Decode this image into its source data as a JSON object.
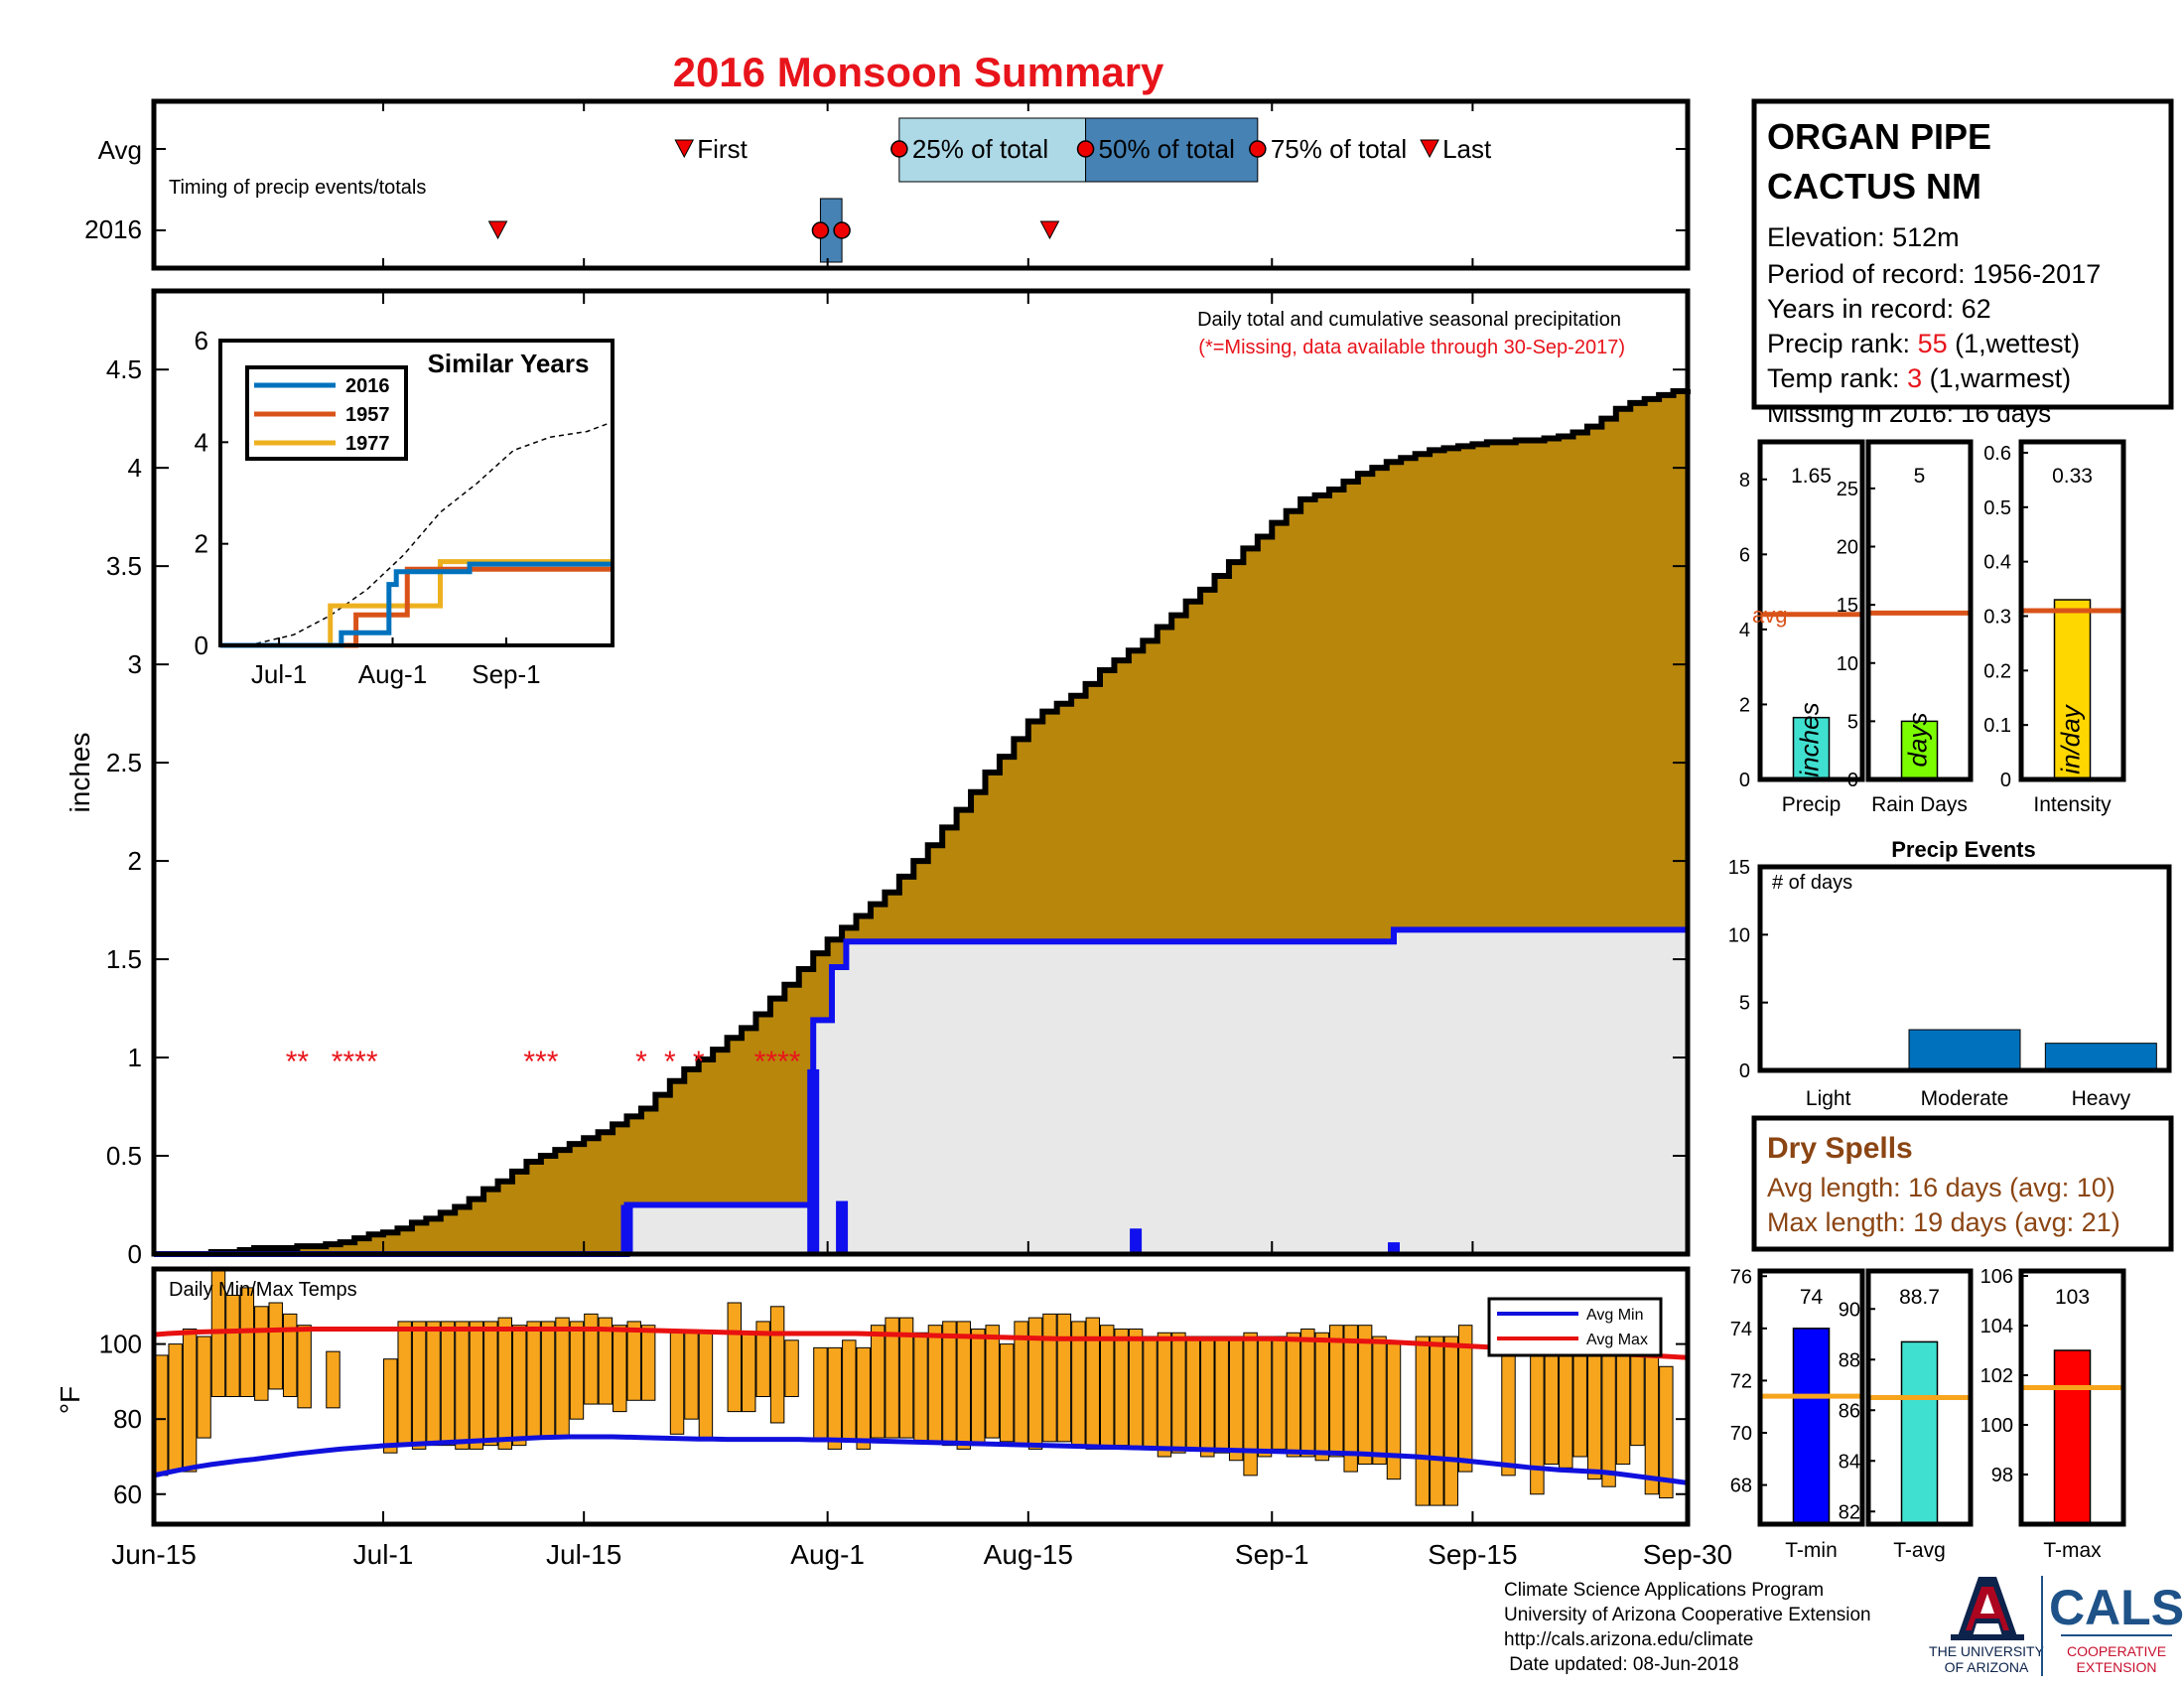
{
  "title": "2016 Monsoon Summary",
  "colors": {
    "title": "#e8141b",
    "cumulative_fill": "#b8860b",
    "avg_fill": "#e8e8e8",
    "avg_line": "#1010ee",
    "temp_bar": "#f7a51d",
    "avg_max_line": "#e81010",
    "avg_min_line": "#1010dd",
    "avg_ref": "#d95319",
    "timing_light": "#add8e6",
    "timing_dark": "#4682b4",
    "missing": "#e8141b",
    "dry_text": "#8b4513",
    "ua_blue": "#0c234b",
    "ua_red": "#ab0520",
    "cals_blue": "#1e5288",
    "cals_red": "#c8102e"
  },
  "timing": {
    "row_labels": [
      "Avg",
      "2016"
    ],
    "caption": "Timing of precip events/totals",
    "avg_marks": [
      {
        "label": "First",
        "kind": "triangle",
        "day": 37
      },
      {
        "label": "25% of total",
        "kind": "circle",
        "day": 52
      },
      {
        "label": "50% of total",
        "kind": "circle",
        "day": 65
      },
      {
        "label": "75% of total",
        "kind": "circle",
        "day": 77
      },
      {
        "label": "Last",
        "kind": "triangle",
        "day": 89
      }
    ],
    "marks_2016": [
      {
        "kind": "triangle",
        "day": 24
      },
      {
        "kind": "circle",
        "day": 46.5
      },
      {
        "kind": "circle",
        "day": 48
      },
      {
        "kind": "triangle",
        "day": 62.5
      }
    ],
    "box_2016": {
      "start": 46.5,
      "end": 48
    }
  },
  "main_chart": {
    "ylabel": "inches",
    "yticks": [
      0,
      0.5,
      1,
      1.5,
      2,
      2.5,
      3,
      3.5,
      4,
      4.5
    ],
    "ylim": [
      0,
      4.9
    ],
    "xlim": [
      0,
      107
    ],
    "xticks": [
      {
        "label": "Jun-15",
        "day": 0
      },
      {
        "label": "Jul-1",
        "day": 16
      },
      {
        "label": "Jul-15",
        "day": 30
      },
      {
        "label": "Aug-1",
        "day": 47
      },
      {
        "label": "Aug-15",
        "day": 61
      },
      {
        "label": "Sep-1",
        "day": 78
      },
      {
        "label": "Sep-15",
        "day": 92
      },
      {
        "label": "Sep-30",
        "day": 107
      }
    ],
    "annotation": "Daily total and cumulative seasonal precipitation",
    "annotation_note": "(*=Missing, data available through 30-Sep-2017)",
    "missing_stars": [
      {
        "day": 10,
        "text": "**"
      },
      {
        "day": 14,
        "text": "****"
      },
      {
        "day": 27,
        "text": "***"
      },
      {
        "day": 34,
        "text": "*"
      },
      {
        "day": 36,
        "text": "*"
      },
      {
        "day": 38,
        "text": "*"
      },
      {
        "day": 43.5,
        "text": "****"
      }
    ]
  },
  "chart_data": [
    {
      "type": "area",
      "name": "cumulative average precipitation",
      "x": [
        0,
        1,
        2,
        3,
        4,
        5,
        6,
        7,
        8,
        9,
        10,
        11,
        12,
        13,
        14,
        15,
        16,
        17,
        18,
        19,
        20,
        21,
        22,
        23,
        24,
        25,
        26,
        27,
        28,
        29,
        30,
        31,
        32,
        33,
        34,
        35,
        36,
        37,
        38,
        39,
        40,
        41,
        42,
        43,
        44,
        45,
        46,
        47,
        48,
        49,
        50,
        51,
        52,
        53,
        54,
        55,
        56,
        57,
        58,
        59,
        60,
        61,
        62,
        63,
        64,
        65,
        66,
        67,
        68,
        69,
        70,
        71,
        72,
        73,
        74,
        75,
        76,
        77,
        78,
        79,
        80,
        81,
        82,
        83,
        84,
        85,
        86,
        87,
        88,
        89,
        90,
        91,
        92,
        93,
        94,
        95,
        96,
        97,
        98,
        99,
        100,
        101,
        102,
        103,
        104,
        105,
        106,
        107
      ],
      "values": [
        0,
        0,
        0,
        0,
        0.01,
        0.01,
        0.02,
        0.03,
        0.03,
        0.03,
        0.04,
        0.04,
        0.05,
        0.06,
        0.08,
        0.1,
        0.11,
        0.13,
        0.16,
        0.18,
        0.21,
        0.24,
        0.28,
        0.33,
        0.37,
        0.42,
        0.47,
        0.5,
        0.53,
        0.56,
        0.59,
        0.62,
        0.66,
        0.7,
        0.74,
        0.81,
        0.88,
        0.94,
        0.99,
        1.04,
        1.1,
        1.15,
        1.22,
        1.3,
        1.37,
        1.45,
        1.53,
        1.6,
        1.66,
        1.72,
        1.78,
        1.84,
        1.92,
        2.0,
        2.08,
        2.17,
        2.26,
        2.35,
        2.45,
        2.53,
        2.62,
        2.71,
        2.76,
        2.8,
        2.84,
        2.9,
        2.97,
        3.02,
        3.07,
        3.12,
        3.19,
        3.25,
        3.32,
        3.38,
        3.45,
        3.52,
        3.59,
        3.65,
        3.72,
        3.78,
        3.84,
        3.86,
        3.89,
        3.93,
        3.97,
        4.0,
        4.03,
        4.05,
        4.07,
        4.09,
        4.1,
        4.11,
        4.12,
        4.13,
        4.13,
        4.14,
        4.14,
        4.15,
        4.16,
        4.18,
        4.21,
        4.25,
        4.3,
        4.33,
        4.35,
        4.37,
        4.39,
        4.4
      ],
      "xlabel": "",
      "ylabel": "inches",
      "ylim": [
        0,
        4.9
      ]
    },
    {
      "type": "line",
      "name": "cumulative 2016 precipitation",
      "x": [
        0,
        33,
        33,
        46,
        46,
        47.3,
        47.3,
        48.3,
        48.3,
        68.5,
        68.5,
        86.5,
        86.5,
        107
      ],
      "values": [
        0,
        0,
        0.25,
        0.25,
        1.19,
        1.19,
        1.46,
        1.46,
        1.59,
        1.59,
        1.59,
        1.59,
        1.65,
        1.65
      ]
    },
    {
      "type": "bar",
      "name": "daily 2016 precipitation",
      "x": [
        33,
        46,
        48,
        68.5,
        86.5
      ],
      "values": [
        0.25,
        0.94,
        0.27,
        0.13,
        0.06
      ]
    },
    {
      "type": "line",
      "name": "similar years inset",
      "title": "Similar Years",
      "xticks": [
        "Jul-1",
        "Aug-1",
        "Sep-1"
      ],
      "yticks": [
        0,
        2,
        4,
        6
      ],
      "ylim": [
        0,
        6
      ],
      "xlim": [
        0,
        107
      ],
      "series": [
        {
          "name": "2016",
          "color": "#0072bd",
          "x": [
            0,
            33,
            33,
            46,
            46,
            48,
            48,
            68,
            68,
            107
          ],
          "values": [
            0,
            0,
            0.25,
            0.25,
            1.2,
            1.2,
            1.45,
            1.45,
            1.6,
            1.6
          ]
        },
        {
          "name": "1957",
          "color": "#d95319",
          "x": [
            0,
            37,
            37,
            51,
            51,
            107
          ],
          "values": [
            0,
            0,
            0.6,
            0.6,
            1.5,
            1.5
          ]
        },
        {
          "name": "1977",
          "color": "#edb120",
          "x": [
            0,
            30,
            30,
            60,
            60,
            107
          ],
          "values": [
            0,
            0,
            0.78,
            0.78,
            1.65,
            1.65
          ]
        },
        {
          "name": "avg",
          "color": "#000000",
          "dashed": true,
          "x": [
            0,
            10,
            20,
            30,
            40,
            50,
            60,
            70,
            80,
            90,
            100,
            107
          ],
          "values": [
            0,
            0.04,
            0.21,
            0.59,
            1.1,
            1.78,
            2.62,
            3.19,
            3.84,
            4.1,
            4.21,
            4.4
          ]
        }
      ]
    },
    {
      "type": "bar",
      "name": "daily min/max temps",
      "title": "Daily Min/Max Temps",
      "ylabel": "°F",
      "yticks": [
        60,
        80,
        100
      ],
      "ylim": [
        52,
        120
      ],
      "x": [
        0,
        1,
        2,
        3,
        4,
        5,
        6,
        7,
        8,
        9,
        10,
        12,
        16,
        17,
        18,
        19,
        20,
        21,
        22,
        23,
        24,
        25,
        26,
        27,
        28,
        29,
        30,
        31,
        32,
        33,
        34,
        36,
        37,
        38,
        40,
        41,
        42,
        43,
        44,
        46,
        47,
        48,
        49,
        50,
        51,
        52,
        53,
        54,
        55,
        56,
        57,
        58,
        59,
        60,
        61,
        62,
        63,
        64,
        65,
        66,
        67,
        68,
        69,
        70,
        71,
        72,
        73,
        74,
        75,
        76,
        77,
        78,
        79,
        80,
        81,
        82,
        83,
        84,
        85,
        86,
        88,
        89,
        90,
        91,
        94,
        96,
        97,
        98,
        99,
        100,
        101,
        102,
        103,
        104,
        105
      ],
      "lows": [
        65,
        66,
        66,
        75,
        86,
        86,
        86,
        85,
        88,
        86,
        83,
        83,
        71,
        73,
        72,
        73,
        73,
        72,
        72,
        73,
        72,
        73,
        75,
        75,
        75,
        80,
        84,
        84,
        82,
        85,
        85,
        76,
        80,
        75,
        82,
        82,
        86,
        79,
        86,
        74,
        72,
        74,
        72,
        75,
        75,
        75,
        74,
        74,
        73,
        72,
        73,
        75,
        74,
        73,
        72,
        74,
        74,
        73,
        72,
        72,
        73,
        72,
        72,
        70,
        71,
        72,
        70,
        71,
        69,
        65,
        70,
        72,
        70,
        70,
        69,
        70,
        66,
        68,
        68,
        64,
        57,
        57,
        57,
        66,
        65,
        60,
        68,
        67,
        70,
        64,
        62,
        68,
        73,
        60,
        59
      ],
      "highs": [
        97,
        100,
        104,
        102,
        123,
        113,
        115,
        110,
        111,
        108,
        105,
        98,
        96,
        106,
        106,
        106,
        106,
        106,
        106,
        106,
        107,
        105,
        106,
        106,
        107,
        106,
        108,
        107,
        105,
        106,
        105,
        103,
        103,
        103,
        111,
        103,
        106,
        110,
        101,
        99,
        99,
        101,
        99,
        105,
        107,
        107,
        103,
        105,
        106,
        106,
        104,
        105,
        100,
        106,
        107,
        108,
        108,
        106,
        107,
        105,
        104,
        104,
        102,
        103,
        103,
        102,
        102,
        102,
        102,
        103,
        102,
        102,
        103,
        104,
        103,
        105,
        105,
        105,
        102,
        100,
        102,
        102,
        102,
        105,
        102,
        102,
        100,
        102,
        102,
        100,
        97,
        99,
        98,
        100,
        94
      ],
      "avg_min": [
        65,
        65.8,
        66.6,
        67.3,
        67.9,
        68.4,
        68.9,
        69.3,
        69.8,
        70.3,
        70.8,
        71.2,
        71.6,
        72.0,
        72.3,
        72.6,
        72.9,
        73.1,
        73.3,
        73.5,
        73.7,
        73.9,
        74.1,
        74.3,
        74.5,
        74.7,
        74.9,
        75.1,
        75.2,
        75.3,
        75.3,
        75.3,
        75.3,
        75.2,
        75.1,
        75.0,
        74.9,
        74.8,
        74.7,
        74.7,
        74.6,
        74.6,
        74.6,
        74.6,
        74.6,
        74.6,
        74.5,
        74.5,
        74.4,
        74.3,
        74.2,
        74.1,
        74.0,
        73.9,
        73.8,
        73.7,
        73.6,
        73.5,
        73.4,
        73.3,
        73.2,
        73.1,
        73.0,
        72.9,
        72.8,
        72.7,
        72.6,
        72.5,
        72.4,
        72.3,
        72.2,
        72.1,
        72.0,
        71.9,
        71.8,
        71.7,
        71.6,
        71.5,
        71.4,
        71.3,
        71.2,
        71.1,
        71.0,
        70.9,
        70.8,
        70.6,
        70.4,
        70.2,
        70.0,
        69.7,
        69.4,
        69.1,
        68.7,
        68.3,
        67.9,
        67.5,
        67.1,
        66.8,
        66.5,
        66.3,
        66.1,
        65.9,
        65.5,
        65.0,
        64.5,
        64.0,
        63.5,
        63.0
      ],
      "avg_max": [
        102.5,
        102.8,
        103.0,
        103.2,
        103.3,
        103.4,
        103.5,
        103.6,
        103.7,
        103.8,
        103.9,
        104.0,
        104.0,
        104.0,
        104.0,
        104.0,
        104.0,
        104.0,
        104.0,
        104.0,
        104.0,
        104.0,
        104.0,
        104.0,
        104.0,
        104.0,
        104.0,
        104.0,
        104.0,
        104.0,
        104.0,
        104.0,
        103.9,
        103.8,
        103.7,
        103.6,
        103.5,
        103.4,
        103.3,
        103.2,
        103.1,
        103.0,
        102.9,
        102.8,
        102.8,
        102.8,
        102.8,
        102.8,
        102.8,
        102.8,
        102.7,
        102.6,
        102.5,
        102.4,
        102.3,
        102.2,
        102.1,
        102.0,
        101.9,
        101.8,
        101.7,
        101.6,
        101.5,
        101.4,
        101.4,
        101.4,
        101.4,
        101.4,
        101.4,
        101.4,
        101.4,
        101.4,
        101.4,
        101.4,
        101.4,
        101.4,
        101.4,
        101.4,
        101.4,
        101.3,
        101.2,
        101.1,
        101.0,
        100.9,
        100.8,
        100.7,
        100.6,
        100.4,
        100.2,
        100.0,
        99.8,
        99.6,
        99.4,
        99.2,
        99.0,
        98.8,
        98.6,
        98.4,
        98.2,
        98.0,
        97.8,
        97.6,
        97.4,
        97.2,
        97.0,
        96.8,
        96.6,
        96.4
      ],
      "legend": [
        "Avg Min",
        "Avg Max"
      ]
    },
    {
      "type": "bar",
      "name": "precip totals",
      "categories": [
        "Precip",
        "Rain Days",
        "Intensity"
      ],
      "values": [
        1.65,
        5,
        0.33
      ],
      "averages": [
        4.4,
        14.3,
        0.31
      ],
      "units": [
        "inches",
        "days",
        "in/day"
      ],
      "ylims": [
        [
          0,
          9
        ],
        [
          0,
          29
        ],
        [
          0,
          0.62
        ]
      ],
      "yticks": [
        [
          0,
          2,
          4,
          6,
          8
        ],
        [
          0,
          5,
          10,
          15,
          20,
          25
        ],
        [
          0,
          0.1,
          0.2,
          0.3,
          0.4,
          0.5,
          0.6
        ]
      ],
      "colors": [
        "#40e0d0",
        "#7cfc00",
        "#ffd700"
      ],
      "avg_label": "avg"
    },
    {
      "type": "bar",
      "name": "precip events",
      "title": "Precip Events",
      "ylabel": "# of days",
      "categories": [
        "Light",
        "Moderate",
        "Heavy"
      ],
      "values": [
        0,
        3,
        2
      ],
      "yticks": [
        0,
        5,
        10,
        15
      ],
      "ylim": [
        0,
        15
      ]
    },
    {
      "type": "bar",
      "name": "temperature summary",
      "categories": [
        "T-min",
        "T-avg",
        "T-max"
      ],
      "values": [
        74,
        88.7,
        103
      ],
      "averages": [
        71.4,
        86.5,
        101.5
      ],
      "ylims": [
        [
          66.5,
          76.2
        ],
        [
          81.5,
          91.5
        ],
        [
          96,
          106.2
        ]
      ],
      "yticks": [
        [
          68,
          70,
          72,
          74,
          76
        ],
        [
          82,
          84,
          86,
          88,
          90
        ],
        [
          98,
          100,
          102,
          104,
          106
        ]
      ],
      "colors": [
        "#0000ff",
        "#40e0d0",
        "#ff0000"
      ]
    }
  ],
  "station": {
    "name_line1": "ORGAN PIPE",
    "name_line2": "CACTUS NM",
    "elevation": "Elevation: 512m",
    "period": "Period of record: 1956-2017",
    "years": "Years in record: 62",
    "precip_rank_label": "Precip rank: ",
    "precip_rank_value": "55",
    "precip_rank_note": " (1,wettest)",
    "temp_rank_label": "Temp rank: ",
    "temp_rank_value": "3",
    "temp_rank_note": " (1,warmest)",
    "missing": "Missing in 2016: 16 days"
  },
  "dry_spells": {
    "title": "Dry Spells",
    "avg_length": "Avg length: 16 days (avg: 10)",
    "max_length": "Max length: 19 days (avg: 21)"
  },
  "footer": {
    "line1": "Climate Science Applications Program",
    "line2": "University of Arizona Cooperative Extension",
    "line3": "http://cals.arizona.edu/climate",
    "line4": " Date updated: 08-Jun-2018"
  },
  "logos": {
    "ua_line1": "THE UNIVERSITY",
    "ua_line2": "OF ARIZONA",
    "cals": "CALS",
    "coop_line1": "COOPERATIVE",
    "coop_line2": "EXTENSION"
  }
}
